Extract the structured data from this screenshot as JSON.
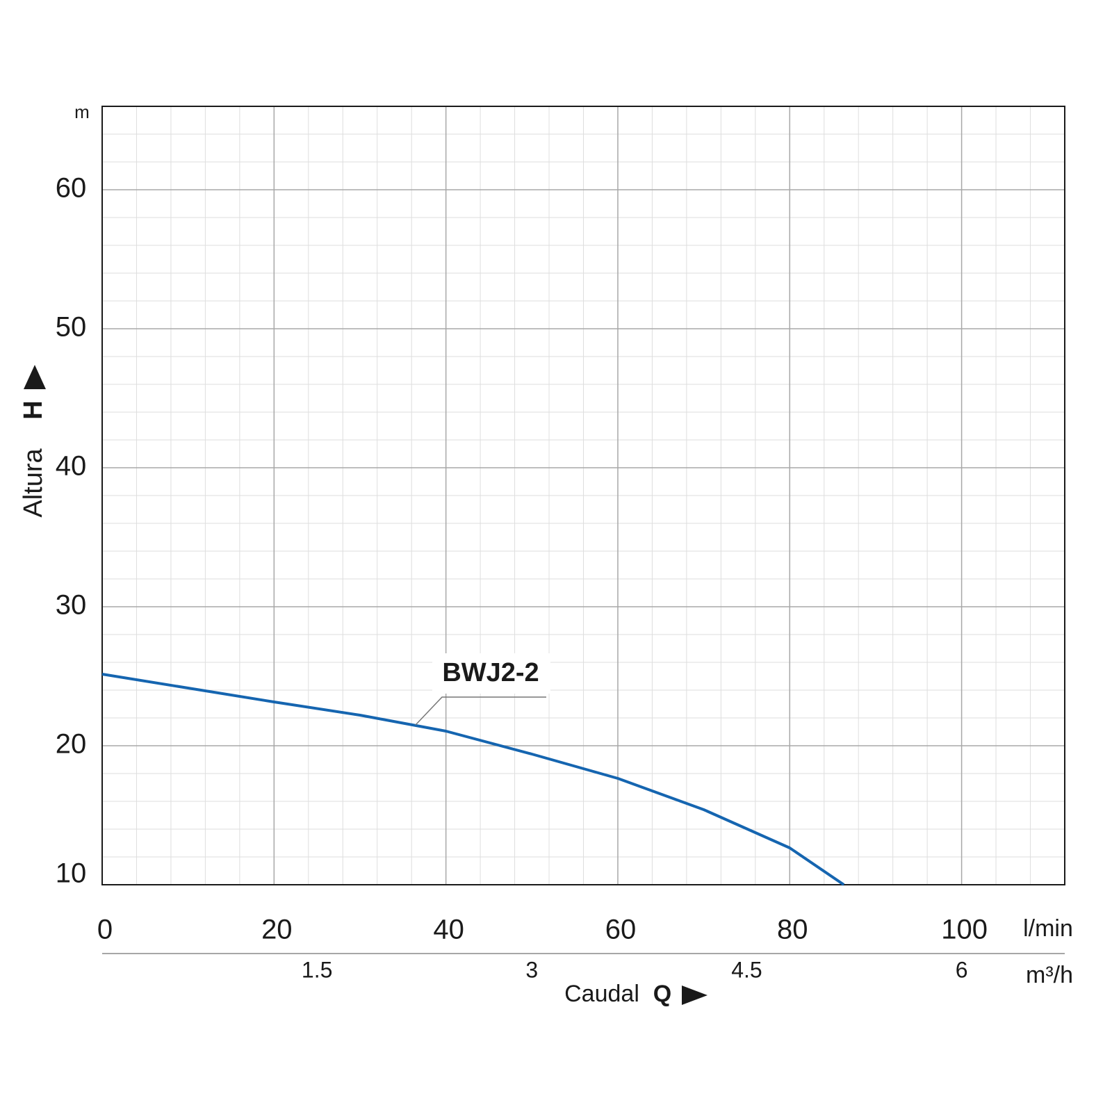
{
  "chart_data": {
    "type": "line",
    "y_unit": "m",
    "x_unit": "l/min",
    "x2_unit": "m³/h",
    "ylabel": "Altura",
    "ylabel_symbol": "H",
    "xlabel": "Caudal",
    "xlabel_symbol": "Q",
    "x": [
      0,
      10,
      20,
      30,
      40,
      50,
      60,
      70,
      80,
      86.3
    ],
    "series": [
      {
        "name": "BWJ2-2",
        "color": "#1565b0",
        "values": [
          25.15,
          24.15,
          23.15,
          22.2,
          21.05,
          19.4,
          17.65,
          15.4,
          12.65,
          10
        ]
      }
    ],
    "xlim": [
      0,
      112
    ],
    "xticks": [
      0,
      20,
      40,
      60,
      80,
      100
    ],
    "x2lim": [
      0,
      6.72
    ],
    "x2ticks": [
      1.5,
      3,
      4.5,
      6
    ],
    "ylim": [
      10,
      66
    ],
    "yticks": [
      10,
      20,
      30,
      40,
      50,
      60
    ],
    "grid": true
  }
}
